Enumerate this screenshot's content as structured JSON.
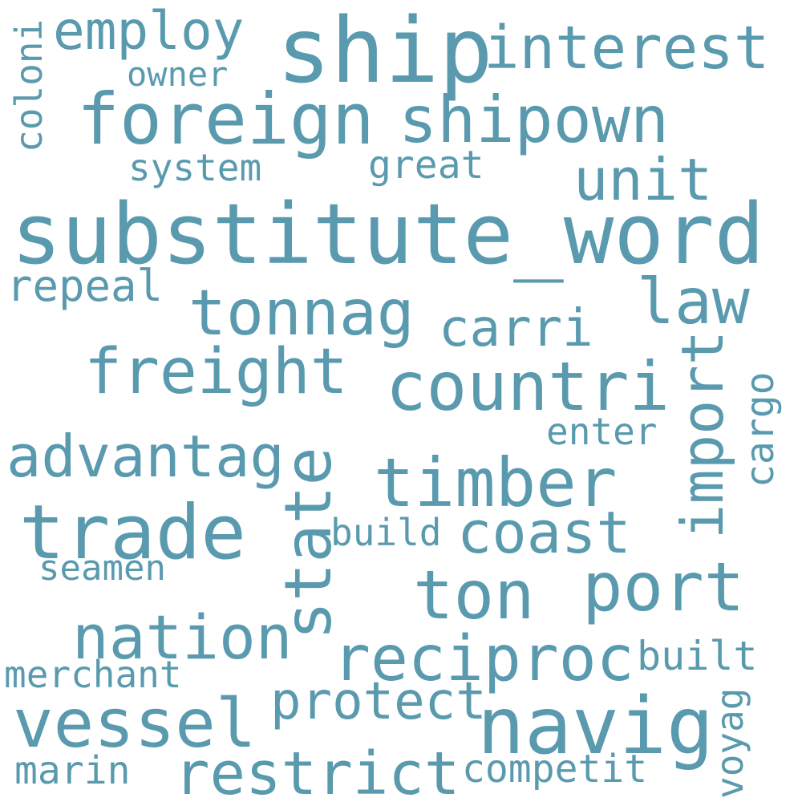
{
  "color": "#5a9aae",
  "words": [
    "substitute_word",
    "ship",
    "foreign",
    "shipown",
    "interest",
    "employ",
    "owner",
    "coloni",
    "unit",
    "system",
    "great",
    "law",
    "repeal",
    "tonnag",
    "carri",
    "freight",
    "countri",
    "import",
    "cargo",
    "advantag",
    "enter",
    "state",
    "timber",
    "trade",
    "build",
    "coast",
    "seamen",
    "ton",
    "port",
    "nation",
    "reciproc",
    "built",
    "merchant",
    "protect",
    "vessel",
    "navig",
    "voyag",
    "restrict",
    "marin",
    "competit"
  ]
}
